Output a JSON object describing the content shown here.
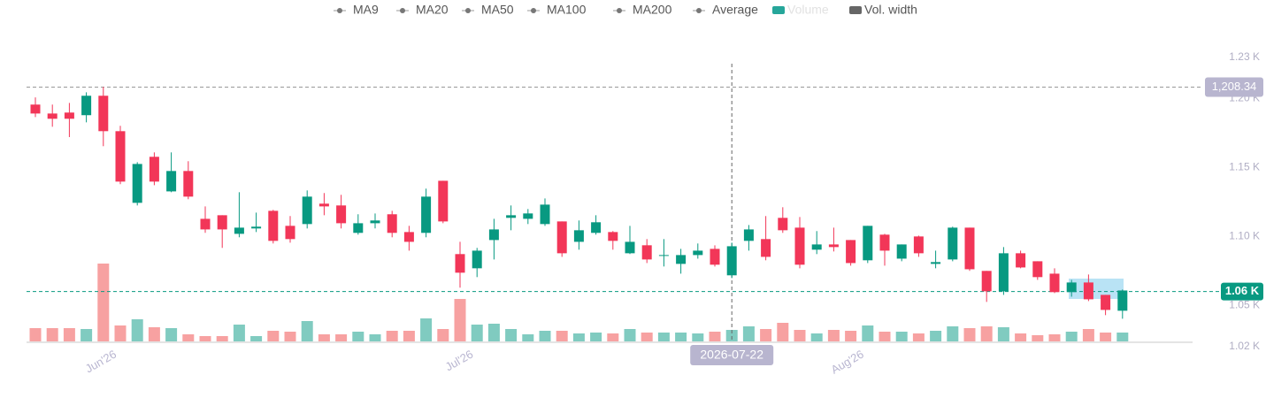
{
  "chart_data": {
    "type": "candlestick",
    "legend": [
      {
        "name": "MA9",
        "color": "#777777"
      },
      {
        "name": "MA20",
        "color": "#777777"
      },
      {
        "name": "MA50",
        "color": "#777777"
      },
      {
        "name": "MA100",
        "color": "#777777"
      },
      {
        "name": "MA200",
        "color": "#777777"
      },
      {
        "name": "Average",
        "color": "#777777"
      },
      {
        "name": "Volume",
        "color": "#26a69a",
        "hidden": true
      },
      {
        "name": "Vol. width",
        "color": "#666666"
      }
    ],
    "up_color": "#089981",
    "down_color": "#f23658",
    "volume_up_color": "#80cbc0",
    "volume_down_color": "#f7a1a1",
    "categories": [
      null,
      null,
      null,
      null,
      "Jun'26",
      null,
      null,
      null,
      null,
      null,
      null,
      null,
      null,
      null,
      null,
      null,
      null,
      null,
      null,
      null,
      null,
      null,
      null,
      null,
      null,
      "Jul'26",
      null,
      null,
      null,
      null,
      null,
      null,
      null,
      null,
      null,
      null,
      null,
      null,
      null,
      null,
      null,
      null,
      null,
      null,
      null,
      null,
      null,
      null,
      "Aug'26",
      null,
      null,
      null,
      null,
      null,
      null,
      null,
      null,
      null,
      null,
      null,
      null,
      null,
      null,
      null,
      null
    ],
    "open": [
      1195.7,
      1189.2,
      1189.9,
      1188.0,
      1202.1,
      1176.4,
      1124.4,
      1157.8,
      1132.7,
      1147.5,
      1112.8,
      1115.4,
      1101.9,
      1105.8,
      1118.6,
      1107.7,
      1109.0,
      1123.8,
      1122.5,
      1102.6,
      1109.6,
      1116.1,
      1103.2,
      1102.6,
      1140.4,
      1087.2,
      1076.9,
      1097.4,
      1113.5,
      1112.8,
      1109.0,
      1110.9,
      1096.1,
      1102.6,
      1103.2,
      1087.8,
      1093.6,
      1085.9,
      1080.1,
      1086.5,
      1091.0,
      1071.8,
      1096.8,
      1098.1,
      1113.5,
      1106.4,
      1090.4,
      1094.2,
      1097.4,
      1082.7,
      1101.3,
      1083.9,
      1100.0,
      1080.1,
      1083.3,
      1106.4,
      1075.0,
      1060.2,
      1087.8,
      1082.0,
      1073.0,
      1059.6,
      1066.6,
      1057.6,
      1046.1
    ],
    "high": [
      1200.9,
      1195.7,
      1196.9,
      1204.6,
      1208.5,
      1180.3,
      1153.9,
      1161.0,
      1161.0,
      1154.6,
      1121.8,
      1115.4,
      1132.1,
      1117.3,
      1119.3,
      1114.8,
      1133.4,
      1131.5,
      1130.2,
      1116.1,
      1116.7,
      1118.6,
      1107.7,
      1134.7,
      1140.4,
      1096.1,
      1091.7,
      1112.8,
      1122.5,
      1119.9,
      1127.6,
      1110.9,
      1111.6,
      1115.4,
      1103.9,
      1107.7,
      1098.1,
      1098.1,
      1091.0,
      1094.9,
      1093.6,
      1095.5,
      1108.3,
      1114.8,
      1121.2,
      1114.1,
      1103.9,
      1106.4,
      1097.4,
      1107.7,
      1101.9,
      1094.2,
      1100.6,
      1089.7,
      1107.1,
      1106.4,
      1075.0,
      1092.3,
      1089.7,
      1082.0,
      1076.9,
      1068.5,
      1072.4,
      1057.6,
      1061.5
    ],
    "low": [
      1186.6,
      1179.6,
      1172.1,
      1182.8,
      1165.5,
      1137.9,
      1122.5,
      1137.2,
      1132.1,
      1127.0,
      1102.6,
      1091.7,
      1099.4,
      1103.2,
      1094.9,
      1095.5,
      1105.8,
      1115.4,
      1105.8,
      1101.3,
      1105.8,
      1099.4,
      1089.7,
      1099.4,
      1109.6,
      1062.8,
      1070.5,
      1083.3,
      1104.5,
      1109.0,
      1107.7,
      1085.2,
      1090.4,
      1101.3,
      1090.4,
      1087.2,
      1080.7,
      1078.2,
      1073.0,
      1083.9,
      1078.2,
      1069.8,
      1089.7,
      1082.7,
      1102.6,
      1076.9,
      1087.2,
      1089.1,
      1078.8,
      1080.7,
      1078.8,
      1082.0,
      1085.2,
      1076.9,
      1082.0,
      1075.0,
      1052.5,
      1057.6,
      1076.9,
      1068.5,
      1058.9,
      1056.3,
      1053.1,
      1042.9,
      1040.3
    ],
    "close": [
      1189.2,
      1185.4,
      1185.4,
      1202.1,
      1176.4,
      1139.8,
      1152.6,
      1139.8,
      1147.5,
      1128.9,
      1105.1,
      1105.1,
      1106.4,
      1107.1,
      1096.8,
      1098.1,
      1128.9,
      1121.8,
      1109.6,
      1109.6,
      1111.6,
      1102.6,
      1096.1,
      1128.9,
      1110.9,
      1073.7,
      1089.7,
      1105.1,
      1115.4,
      1116.7,
      1123.1,
      1087.8,
      1104.5,
      1110.3,
      1096.8,
      1096.1,
      1083.3,
      1086.5,
      1086.5,
      1089.7,
      1079.5,
      1092.9,
      1105.1,
      1085.2,
      1104.5,
      1079.5,
      1094.2,
      1092.3,
      1080.7,
      1107.7,
      1089.7,
      1094.2,
      1087.8,
      1081.4,
      1106.4,
      1076.2,
      1060.2,
      1087.8,
      1077.5,
      1070.5,
      1059.6,
      1066.6,
      1054.4,
      1046.7,
      1060.8
    ],
    "volume": [
      15,
      15,
      15,
      14,
      88,
      18,
      25,
      16,
      15,
      8,
      6,
      6,
      19,
      6,
      12,
      11,
      23,
      8,
      8,
      11,
      8,
      12,
      12,
      26,
      14,
      48,
      19,
      20,
      14,
      8,
      12,
      12,
      9,
      10,
      9,
      14,
      10,
      10,
      10,
      9,
      11,
      13,
      17,
      14,
      21,
      13,
      9,
      13,
      12,
      18,
      11,
      11,
      9,
      12,
      17,
      15,
      17,
      16,
      9,
      7,
      8,
      11,
      14,
      10,
      10
    ],
    "ylim": [
      1020,
      1235
    ],
    "yticks": [
      {
        "value": 1230,
        "label": "1.23 K"
      },
      {
        "value": 1200,
        "label": "1.20 K"
      },
      {
        "value": 1150,
        "label": "1.15 K"
      },
      {
        "value": 1100,
        "label": "1.10 K"
      },
      {
        "value": 1050,
        "label": "1.05 K"
      },
      {
        "value": 1020,
        "label": "1.02 K"
      }
    ],
    "high_line": {
      "value": 1208.34,
      "label": "1,208.34"
    },
    "current_line": {
      "value": 1060,
      "label": "1.06 K"
    },
    "crosshair_label": "2026-07-22"
  }
}
